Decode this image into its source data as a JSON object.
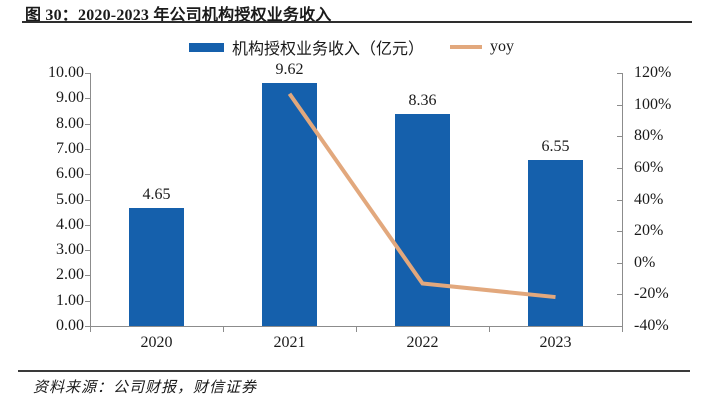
{
  "header": {
    "title": "图 30：2020-2023 年公司机构授权业务收入"
  },
  "legend": {
    "bar_label": "机构授权业务收入（亿元）",
    "line_label": "yoy"
  },
  "footer": {
    "source": "资料来源：公司财报，财信证券"
  },
  "colors": {
    "bar": "#1560AC",
    "line": "#E2A87D",
    "axis": "#8C8C8C",
    "text": "#1A1A1A"
  },
  "chart_data": {
    "type": "bar+line",
    "categories": [
      "2020",
      "2021",
      "2022",
      "2023"
    ],
    "series": [
      {
        "name": "机构授权业务收入（亿元）",
        "type": "bar",
        "axis": "left",
        "values": [
          4.65,
          9.62,
          8.36,
          6.55
        ],
        "value_labels": [
          "4.65",
          "9.62",
          "8.36",
          "6.55"
        ],
        "color": "#1560AC"
      },
      {
        "name": "yoy",
        "type": "line",
        "axis": "right",
        "values": [
          null,
          106.9,
          -13.1,
          -21.7
        ],
        "color": "#E2A87D"
      }
    ],
    "left_axis": {
      "min": 0,
      "max": 10,
      "step": 1,
      "tick_labels": [
        "0.00",
        "1.00",
        "2.00",
        "3.00",
        "4.00",
        "5.00",
        "6.00",
        "7.00",
        "8.00",
        "9.00",
        "10.00"
      ]
    },
    "right_axis": {
      "min": -40,
      "max": 120,
      "step": 20,
      "tick_labels": [
        "-40%",
        "-20%",
        "0%",
        "20%",
        "40%",
        "60%",
        "80%",
        "100%",
        "120%"
      ]
    },
    "legend_position": "top",
    "grid": false
  }
}
